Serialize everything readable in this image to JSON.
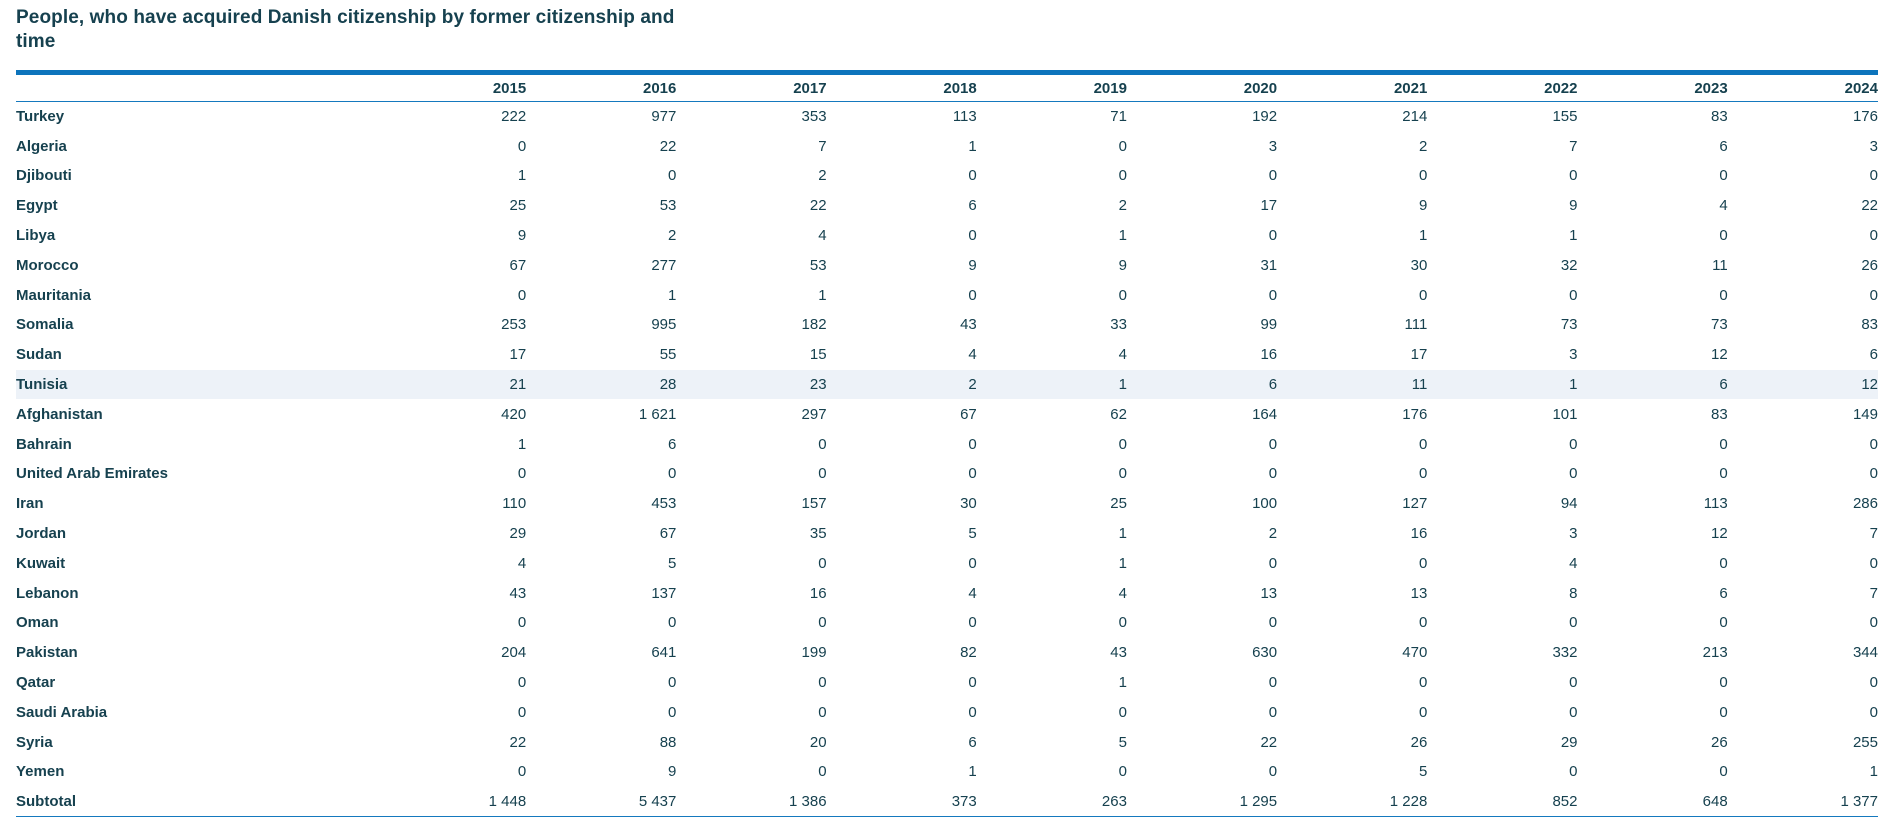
{
  "title": "People, who have acquired Danish citizenship by former citizenship and time",
  "colors": {
    "accent_blue": "#0d74bc",
    "thin_rule_blue": "#1579be",
    "text_teal": "#16414f",
    "row_highlight_bg": "#edf2f8"
  },
  "chart_data": {
    "type": "table",
    "title": "People, who have acquired Danish citizenship by former citizenship and time",
    "row_header": "",
    "columns": [
      "2015",
      "2016",
      "2017",
      "2018",
      "2019",
      "2020",
      "2021",
      "2022",
      "2023",
      "2024"
    ],
    "rows": [
      {
        "label": "Turkey",
        "values": [
          222,
          977,
          353,
          113,
          71,
          192,
          214,
          155,
          83,
          176
        ],
        "highlighted": false
      },
      {
        "label": "Algeria",
        "values": [
          0,
          22,
          7,
          1,
          0,
          3,
          2,
          7,
          6,
          3
        ],
        "highlighted": false
      },
      {
        "label": "Djibouti",
        "values": [
          1,
          0,
          2,
          0,
          0,
          0,
          0,
          0,
          0,
          0
        ],
        "highlighted": false
      },
      {
        "label": "Egypt",
        "values": [
          25,
          53,
          22,
          6,
          2,
          17,
          9,
          9,
          4,
          22
        ],
        "highlighted": false
      },
      {
        "label": "Libya",
        "values": [
          9,
          2,
          4,
          0,
          1,
          0,
          1,
          1,
          0,
          0
        ],
        "highlighted": false
      },
      {
        "label": "Morocco",
        "values": [
          67,
          277,
          53,
          9,
          9,
          31,
          30,
          32,
          11,
          26
        ],
        "highlighted": false
      },
      {
        "label": "Mauritania",
        "values": [
          0,
          1,
          1,
          0,
          0,
          0,
          0,
          0,
          0,
          0
        ],
        "highlighted": false
      },
      {
        "label": "Somalia",
        "values": [
          253,
          995,
          182,
          43,
          33,
          99,
          111,
          73,
          73,
          83
        ],
        "highlighted": false
      },
      {
        "label": "Sudan",
        "values": [
          17,
          55,
          15,
          4,
          4,
          16,
          17,
          3,
          12,
          6
        ],
        "highlighted": false
      },
      {
        "label": "Tunisia",
        "values": [
          21,
          28,
          23,
          2,
          1,
          6,
          11,
          1,
          6,
          12
        ],
        "highlighted": true
      },
      {
        "label": "Afghanistan",
        "values": [
          420,
          1621,
          297,
          67,
          62,
          164,
          176,
          101,
          83,
          149
        ],
        "highlighted": false
      },
      {
        "label": "Bahrain",
        "values": [
          1,
          6,
          0,
          0,
          0,
          0,
          0,
          0,
          0,
          0
        ],
        "highlighted": false
      },
      {
        "label": "United Arab Emirates",
        "values": [
          0,
          0,
          0,
          0,
          0,
          0,
          0,
          0,
          0,
          0
        ],
        "highlighted": false
      },
      {
        "label": "Iran",
        "values": [
          110,
          453,
          157,
          30,
          25,
          100,
          127,
          94,
          113,
          286
        ],
        "highlighted": false
      },
      {
        "label": "Jordan",
        "values": [
          29,
          67,
          35,
          5,
          1,
          2,
          16,
          3,
          12,
          7
        ],
        "highlighted": false
      },
      {
        "label": "Kuwait",
        "values": [
          4,
          5,
          0,
          0,
          1,
          0,
          0,
          4,
          0,
          0
        ],
        "highlighted": false
      },
      {
        "label": "Lebanon",
        "values": [
          43,
          137,
          16,
          4,
          4,
          13,
          13,
          8,
          6,
          7
        ],
        "highlighted": false
      },
      {
        "label": "Oman",
        "values": [
          0,
          0,
          0,
          0,
          0,
          0,
          0,
          0,
          0,
          0
        ],
        "highlighted": false
      },
      {
        "label": "Pakistan",
        "values": [
          204,
          641,
          199,
          82,
          43,
          630,
          470,
          332,
          213,
          344
        ],
        "highlighted": false
      },
      {
        "label": "Qatar",
        "values": [
          0,
          0,
          0,
          0,
          1,
          0,
          0,
          0,
          0,
          0
        ],
        "highlighted": false
      },
      {
        "label": "Saudi Arabia",
        "values": [
          0,
          0,
          0,
          0,
          0,
          0,
          0,
          0,
          0,
          0
        ],
        "highlighted": false
      },
      {
        "label": "Syria",
        "values": [
          22,
          88,
          20,
          6,
          5,
          22,
          26,
          29,
          26,
          255
        ],
        "highlighted": false
      },
      {
        "label": "Yemen",
        "values": [
          0,
          9,
          0,
          1,
          0,
          0,
          5,
          0,
          0,
          1
        ],
        "highlighted": false
      },
      {
        "label": "Subtotal",
        "values": [
          1448,
          5437,
          1386,
          373,
          263,
          1295,
          1228,
          852,
          648,
          1377
        ],
        "highlighted": false,
        "is_subtotal": true
      }
    ],
    "number_format": "space-thousands",
    "layout": {
      "grid": "none",
      "header_position": "top",
      "values_alignment": "right"
    }
  }
}
